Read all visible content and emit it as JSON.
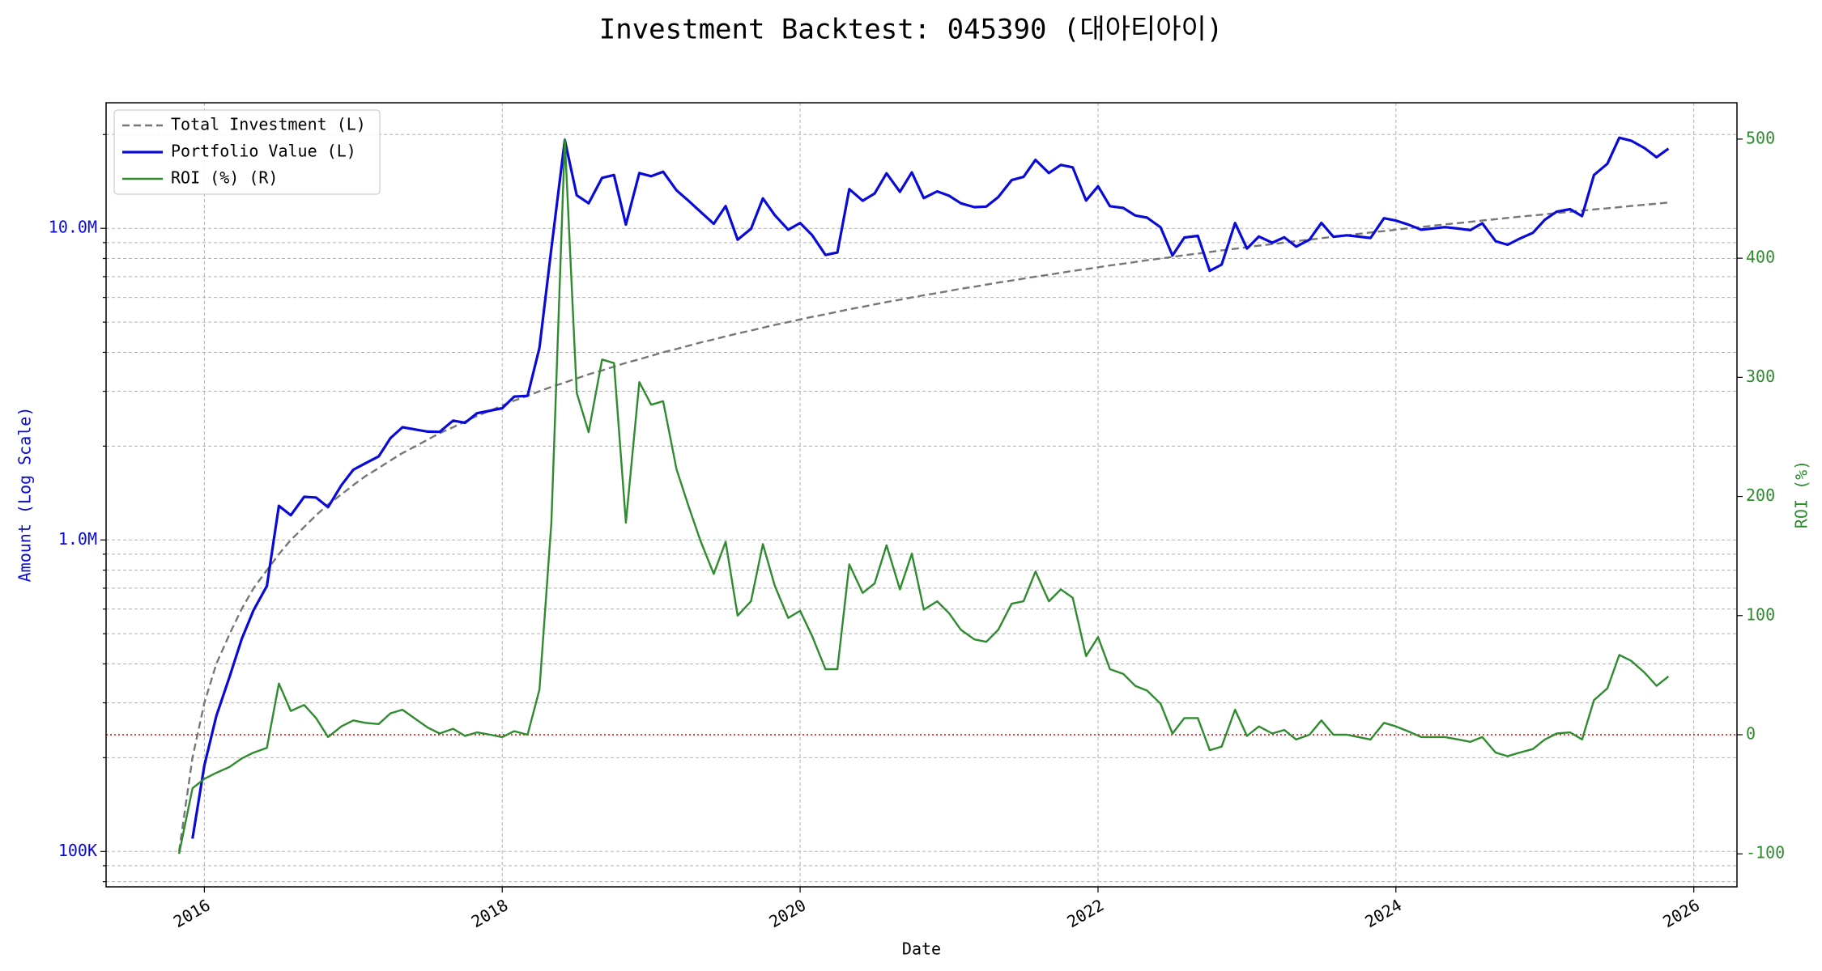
{
  "chart_data": {
    "type": "line",
    "title": "Investment Backtest: 045390 (대아티아이)",
    "xlabel": "Date",
    "ylabel": "Amount (Log Scale)",
    "y2label": "ROI (%)",
    "log_y": true,
    "grid": true,
    "legend": "upper left",
    "xlim": [
      2015.34,
      2026.29
    ],
    "xticks": [
      2016,
      2018,
      2020,
      2022,
      2024,
      2026
    ],
    "ylim": [
      77000,
      25300000
    ],
    "yticks": [
      {
        "value": 100000,
        "label": "100K"
      },
      {
        "value": 1000000,
        "label": "1.0M"
      },
      {
        "value": 10000000,
        "label": "10.0M"
      }
    ],
    "yticks_minor": [
      80000,
      90000,
      200000,
      300000,
      400000,
      500000,
      600000,
      700000,
      800000,
      900000,
      2000000,
      3000000,
      4000000,
      5000000,
      6000000,
      7000000,
      8000000,
      9000000,
      20000000
    ],
    "y2lim": [
      -127.7,
      530.5
    ],
    "y2ticks": [
      -100,
      0,
      100,
      200,
      300,
      400,
      500
    ],
    "y2_reference_line": {
      "value": 0,
      "color": "#e00000"
    },
    "x": [
      2015.83,
      2015.92,
      2016.0,
      2016.08,
      2016.17,
      2016.25,
      2016.33,
      2016.42,
      2016.5,
      2016.58,
      2016.67,
      2016.75,
      2016.83,
      2016.92,
      2017.0,
      2017.08,
      2017.17,
      2017.25,
      2017.33,
      2017.42,
      2017.5,
      2017.58,
      2017.67,
      2017.75,
      2017.83,
      2017.92,
      2018.0,
      2018.08,
      2018.17,
      2018.25,
      2018.33,
      2018.42,
      2018.5,
      2018.58,
      2018.67,
      2018.75,
      2018.83,
      2018.92,
      2019.0,
      2019.08,
      2019.17,
      2019.25,
      2019.33,
      2019.42,
      2019.5,
      2019.58,
      2019.67,
      2019.75,
      2019.83,
      2019.92,
      2020.0,
      2020.08,
      2020.17,
      2020.25,
      2020.33,
      2020.42,
      2020.5,
      2020.58,
      2020.67,
      2020.75,
      2020.83,
      2020.92,
      2021.0,
      2021.08,
      2021.17,
      2021.25,
      2021.33,
      2021.42,
      2021.5,
      2021.58,
      2021.67,
      2021.75,
      2021.83,
      2021.92,
      2022.0,
      2022.08,
      2022.17,
      2022.25,
      2022.33,
      2022.42,
      2022.5,
      2022.58,
      2022.67,
      2022.75,
      2022.83,
      2022.92,
      2023.0,
      2023.08,
      2023.17,
      2023.25,
      2023.33,
      2023.42,
      2023.5,
      2023.58,
      2023.67,
      2023.75,
      2023.83,
      2023.92,
      2024.0,
      2024.08,
      2024.17,
      2024.25,
      2024.33,
      2024.42,
      2024.5,
      2024.58,
      2024.67,
      2024.75,
      2024.83,
      2024.92,
      2025.0,
      2025.08,
      2025.17,
      2025.25,
      2025.33,
      2025.42,
      2025.5,
      2025.58,
      2025.67,
      2025.75,
      2025.83
    ],
    "series": [
      {
        "name": "Total Investment (L)",
        "color": "#777777",
        "dash": true,
        "axis": "y",
        "values": [
          100000,
          200000,
          300000,
          400000,
          500000,
          600000,
          700000,
          800000,
          900000,
          1000000,
          1100000,
          1200000,
          1300000,
          1400000,
          1500000,
          1600000,
          1700000,
          1800000,
          1900000,
          2000000,
          2100000,
          2200000,
          2300000,
          2400000,
          2500000,
          2600000,
          2700000,
          2800000,
          2900000,
          3000000,
          3100000,
          3200000,
          3300000,
          3400000,
          3500000,
          3600000,
          3700000,
          3800000,
          3900000,
          4000000,
          4100000,
          4200000,
          4300000,
          4400000,
          4500000,
          4600000,
          4700000,
          4800000,
          4900000,
          5000000,
          5100000,
          5200000,
          5300000,
          5400000,
          5500000,
          5600000,
          5700000,
          5800000,
          5900000,
          6000000,
          6100000,
          6200000,
          6300000,
          6400000,
          6500000,
          6600000,
          6700000,
          6800000,
          6900000,
          7000000,
          7100000,
          7200000,
          7300000,
          7400000,
          7500000,
          7600000,
          7700000,
          7800000,
          7900000,
          8000000,
          8100000,
          8200000,
          8300000,
          8400000,
          8500000,
          8600000,
          8700000,
          8800000,
          8900000,
          9000000,
          9100000,
          9200000,
          9300000,
          9400000,
          9500000,
          9600000,
          9700000,
          9800000,
          9900000,
          10000000,
          10100000,
          10200000,
          10300000,
          10400000,
          10500000,
          10600000,
          10700000,
          10800000,
          10900000,
          11000000,
          11100000,
          11200000,
          11300000,
          11400000,
          11500000,
          11600000,
          11700000,
          11800000,
          11900000,
          12000000,
          12100000
        ]
      },
      {
        "name": "Portfolio Value (L)",
        "color": "#0a0ad8",
        "axis": "y",
        "values": [
          null,
          110000,
          189000,
          272000,
          365000,
          480000,
          595000,
          712000,
          1287000,
          1200000,
          1375000,
          1368000,
          1274000,
          1498000,
          1680000,
          1760000,
          1853000,
          2124000,
          2299000,
          2260000,
          2226000,
          2222000,
          2415000,
          2376000,
          2550000,
          2600000,
          2646000,
          2884000,
          2900000,
          4140000,
          8618000,
          19200000,
          12771000,
          12036000,
          14525000,
          14832000,
          10286000,
          15048000,
          14703000,
          15200000,
          13243000,
          12264000,
          11309000,
          10340000,
          11790000,
          9200000,
          9964000,
          12480000,
          11025000,
          9900000,
          10404000,
          9516000,
          8215000,
          8370000,
          13365000,
          12264000,
          12939000,
          15022000,
          13098000,
          15120000,
          12505000,
          13144000,
          12726000,
          12032000,
          11700000,
          11748000,
          12596000,
          14280000,
          14628000,
          16590000,
          15052000,
          15984000,
          15695000,
          12284000,
          13650000,
          11780000,
          11627000,
          10998000,
          10823000,
          10080000,
          8181000,
          9348000,
          9462000,
          7308000,
          7650000,
          10406000,
          8613000,
          9416000,
          8989000,
          9360000,
          8736000,
          9200000,
          10416000,
          9400000,
          9500000,
          9408000,
          9312000,
          10780000,
          10593000,
          10300000,
          9898000,
          9996000,
          10094000,
          9984000,
          9870000,
          10388000,
          9095000,
          8856000,
          9265000,
          9680000,
          10656000,
          11312000,
          11526000,
          10944000,
          14835000,
          16124000,
          19539000,
          19116000,
          18088000,
          16920000,
          18029000
        ]
      },
      {
        "name": "ROI (%) (R)",
        "color": "#2e8b2e",
        "axis": "y2",
        "values": [
          -100,
          -45,
          -37,
          -32,
          -27,
          -20,
          -15,
          -11,
          43,
          20,
          25,
          14,
          -2,
          7,
          12,
          10,
          9,
          18,
          21,
          13,
          6,
          1,
          5,
          -1,
          2,
          0,
          -2,
          3,
          0,
          38,
          178,
          500,
          287,
          254,
          315,
          312,
          178,
          296,
          277,
          280,
          223,
          192,
          163,
          135,
          162,
          100,
          112,
          160,
          125,
          98,
          104,
          83,
          55,
          55,
          143,
          119,
          127,
          159,
          122,
          152,
          105,
          112,
          102,
          88,
          80,
          78,
          88,
          110,
          112,
          137,
          112,
          122,
          115,
          66,
          82,
          55,
          51,
          41,
          37,
          26,
          1,
          14,
          14,
          -13,
          -10,
          21,
          -1,
          7,
          1,
          4,
          -4,
          0,
          12,
          0,
          0,
          -2,
          -4,
          10,
          7,
          3,
          -2,
          -2,
          -2,
          -4,
          -6,
          -2,
          -15,
          -18,
          -15,
          -12,
          -4,
          1,
          2,
          -4,
          29,
          39,
          67,
          62,
          52,
          41,
          49
        ]
      }
    ]
  }
}
